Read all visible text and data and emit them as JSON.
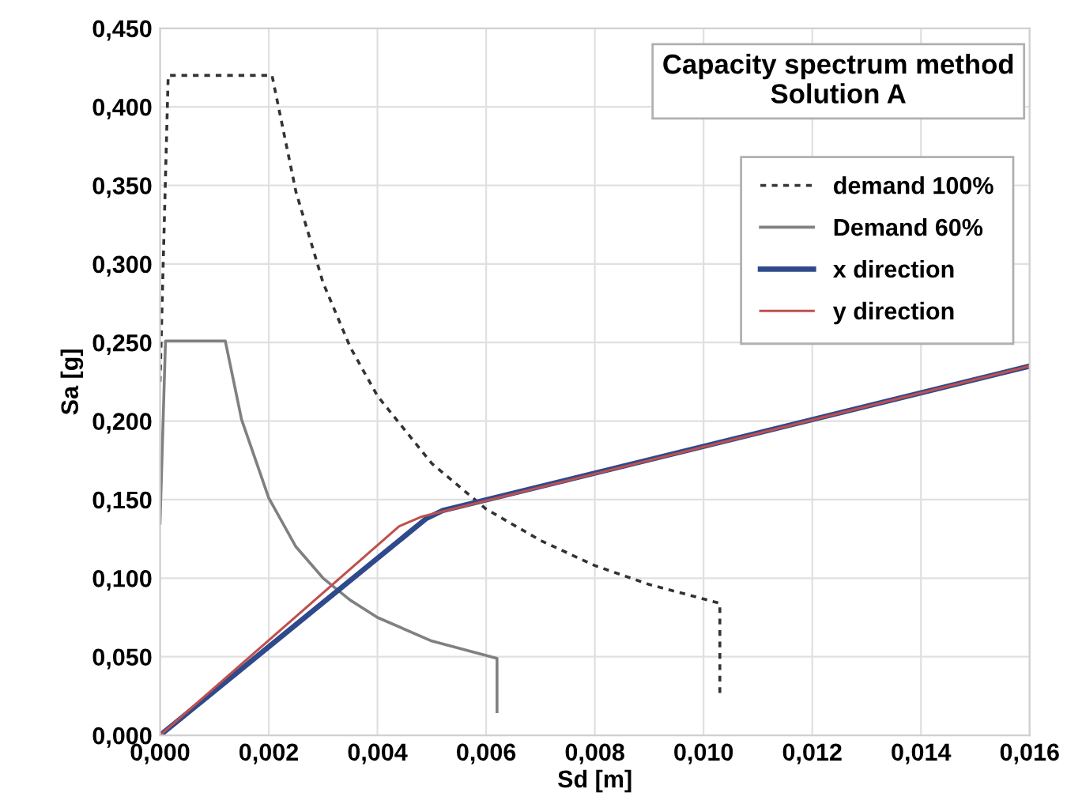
{
  "chart_data": {
    "type": "line",
    "title": "Capacity spectrum method\nSolution A",
    "xlabel": "Sd [m]",
    "ylabel": "Sa [g]",
    "xlim": [
      0,
      0.016
    ],
    "ylim": [
      0,
      0.45
    ],
    "xticks": [
      {
        "value": 0,
        "label": "0,000"
      },
      {
        "value": 0.002,
        "label": "0,002"
      },
      {
        "value": 0.004,
        "label": "0,004"
      },
      {
        "value": 0.006,
        "label": "0,006"
      },
      {
        "value": 0.008,
        "label": "0,008"
      },
      {
        "value": 0.01,
        "label": "0,010"
      },
      {
        "value": 0.012,
        "label": "0,012"
      },
      {
        "value": 0.014,
        "label": "0,014"
      },
      {
        "value": 0.016,
        "label": "0,016"
      }
    ],
    "yticks": [
      {
        "value": 0,
        "label": "0,000"
      },
      {
        "value": 0.05,
        "label": "0,050"
      },
      {
        "value": 0.1,
        "label": "0,100"
      },
      {
        "value": 0.15,
        "label": "0,150"
      },
      {
        "value": 0.2,
        "label": "0,200"
      },
      {
        "value": 0.25,
        "label": "0,250"
      },
      {
        "value": 0.3,
        "label": "0,300"
      },
      {
        "value": 0.35,
        "label": "0,350"
      },
      {
        "value": 0.4,
        "label": "0,400"
      },
      {
        "value": 0.45,
        "label": "0,450"
      }
    ],
    "grid": true,
    "legend": "top right",
    "marker": "none",
    "series": [
      {
        "name": "demand 100%",
        "color": "#333333",
        "line_style": "dotted",
        "x": [
          0,
          0.00015,
          0.00206,
          0.0025,
          0.003,
          0.0035,
          0.004,
          0.005,
          0.006,
          0.007,
          0.008,
          0.009,
          0.0103,
          0.0103
        ],
        "values": [
          0.225,
          0.42,
          0.42,
          0.346,
          0.288,
          0.247,
          0.216,
          0.173,
          0.144,
          0.124,
          0.108,
          0.096,
          0.084,
          0.025
        ]
      },
      {
        "name": "Demand 60%",
        "color": "#808080",
        "line_style": "solid",
        "x": [
          0,
          0.0001,
          0.0012,
          0.0015,
          0.002,
          0.0025,
          0.003,
          0.0035,
          0.004,
          0.005,
          0.0062,
          0.0062
        ],
        "values": [
          0.135,
          0.251,
          0.251,
          0.201,
          0.151,
          0.12,
          0.1,
          0.086,
          0.075,
          0.06,
          0.049,
          0.015
        ]
      },
      {
        "name": "x direction",
        "color": "#2e4a8c",
        "line_style": "solid",
        "x": [
          0,
          0.0049,
          0.0052,
          0.016
        ],
        "values": [
          0,
          0.138,
          0.143,
          0.235
        ]
      },
      {
        "name": "y direction",
        "color": "#c0504d",
        "line_style": "solid",
        "x": [
          0,
          0.0044,
          0.0048,
          0.016
        ],
        "values": [
          0,
          0.133,
          0.139,
          0.235
        ]
      }
    ]
  }
}
